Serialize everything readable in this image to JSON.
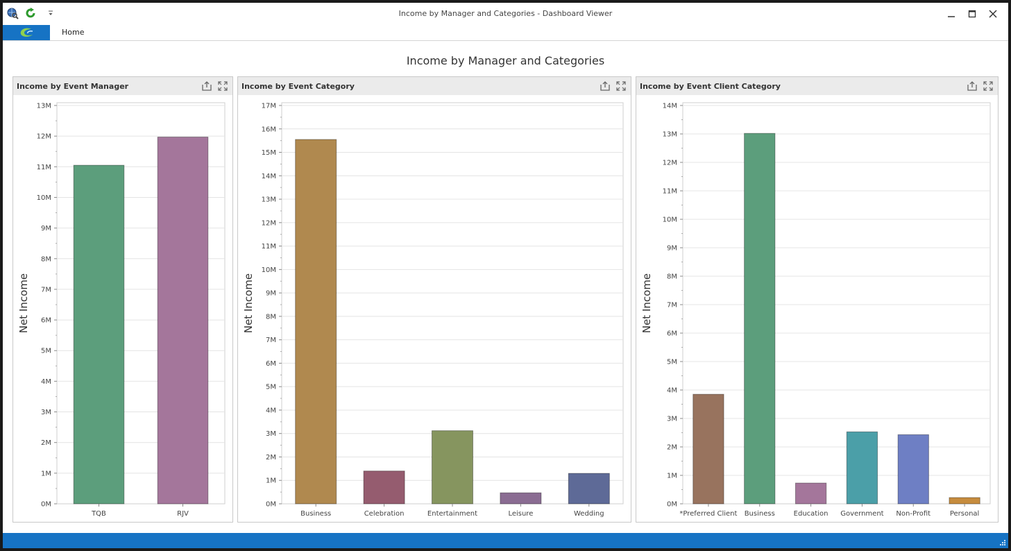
{
  "window": {
    "title": "Income by Manager and Categories - Dashboard Viewer",
    "minimize_icon": "minimize-icon",
    "maximize_icon": "maximize-icon",
    "close_icon": "close-icon"
  },
  "quick_access": [
    "globe-search-icon",
    "refresh-icon",
    "dropdown-arrow-icon"
  ],
  "ribbon": {
    "file_icon": "app-logo-icon",
    "tabs": [
      {
        "label": "Home"
      }
    ]
  },
  "dashboard": {
    "title": "Income by Manager and Categories"
  },
  "colors": {
    "accent": "#1673c4",
    "gridline": "#e4e4e4",
    "panel_header": "#ebebeb"
  },
  "panels": [
    {
      "title": "Income by Event Manager",
      "chart_data": {
        "type": "bar",
        "title": "Income by Event Manager",
        "ylabel": "Net Income",
        "categories": [
          "TQB",
          "RJV"
        ],
        "values": [
          11.05,
          11.97
        ],
        "colors": [
          "#5c9e7c",
          "#a4769b"
        ],
        "ylim": [
          0,
          13
        ],
        "yticks": [
          "0M",
          "1M",
          "2M",
          "3M",
          "4M",
          "5M",
          "6M",
          "7M",
          "8M",
          "9M",
          "10M",
          "11M",
          "12M",
          "13M"
        ],
        "grid": true
      }
    },
    {
      "title": "Income by Event Category",
      "chart_data": {
        "type": "bar",
        "title": "Income by Event Category",
        "ylabel": "Net Income",
        "categories": [
          "Business",
          "Celebration",
          "Entertainment",
          "Leisure",
          "Wedding"
        ],
        "values": [
          15.55,
          1.4,
          3.12,
          0.47,
          1.3
        ],
        "colors": [
          "#b0894f",
          "#955c6f",
          "#86955f",
          "#8a6c92",
          "#5e6a97"
        ],
        "ylim": [
          0,
          17
        ],
        "yticks": [
          "0M",
          "1M",
          "2M",
          "3M",
          "4M",
          "5M",
          "6M",
          "7M",
          "8M",
          "9M",
          "10M",
          "11M",
          "12M",
          "13M",
          "14M",
          "15M",
          "16M",
          "17M"
        ],
        "grid": true
      }
    },
    {
      "title": "Income by Event Client Category",
      "chart_data": {
        "type": "bar",
        "title": "Income by Event Client Category",
        "ylabel": "Net Income",
        "categories": [
          "*Preferred Client",
          "Business",
          "Education",
          "Government",
          "Non-Profit",
          "Personal"
        ],
        "values": [
          3.85,
          13.02,
          0.73,
          2.53,
          2.43,
          0.22
        ],
        "colors": [
          "#98735e",
          "#5c9e7c",
          "#a4769b",
          "#4b9fa8",
          "#6e7fc4",
          "#c68c3e"
        ],
        "ylim": [
          0,
          14
        ],
        "yticks": [
          "0M",
          "1M",
          "2M",
          "3M",
          "4M",
          "5M",
          "6M",
          "7M",
          "8M",
          "9M",
          "10M",
          "11M",
          "12M",
          "13M",
          "14M"
        ],
        "grid": true
      }
    }
  ],
  "panel_buttons": [
    "export-icon",
    "maximize-panel-icon"
  ]
}
